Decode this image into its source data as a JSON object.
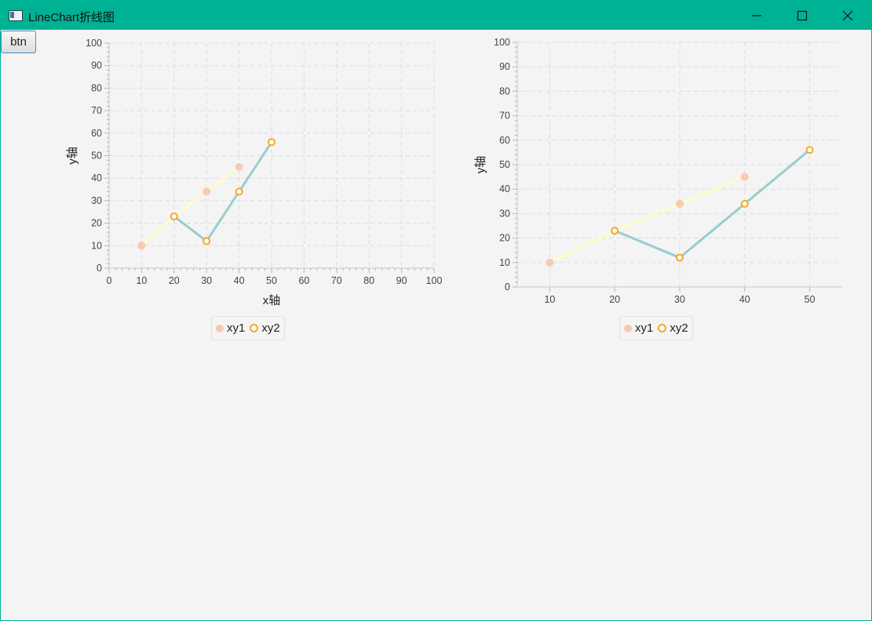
{
  "window": {
    "title": "LineChart折线图",
    "colors": {
      "titlebar": "#00b294",
      "background": "#f4f4f4"
    }
  },
  "toolbar": {
    "btn_label": "btn"
  },
  "icons": [
    "app-window-icon",
    "minimize-icon",
    "maximize-icon",
    "close-icon"
  ],
  "chart_data": [
    {
      "type": "line",
      "title": "",
      "xlabel": "x轴",
      "ylabel": "y轴",
      "xlim": [
        0,
        100
      ],
      "ylim": [
        0,
        100
      ],
      "xticks": [
        0,
        10,
        20,
        30,
        40,
        50,
        60,
        70,
        80,
        90,
        100
      ],
      "yticks": [
        0,
        10,
        20,
        30,
        40,
        50,
        60,
        70,
        80,
        90,
        100
      ],
      "grid": true,
      "legend": "bottom-center",
      "series": [
        {
          "name": "xy1",
          "color": "#fdfec4",
          "marker_color": "#f9c9b2",
          "marker": "filled-circle",
          "points": [
            [
              10,
              10
            ],
            [
              20,
              23
            ],
            [
              30,
              34
            ],
            [
              40,
              45
            ]
          ]
        },
        {
          "name": "xy2",
          "color": "#96ced0",
          "marker_color": "#f3a828",
          "marker": "ring",
          "points": [
            [
              20,
              23
            ],
            [
              30,
              12
            ],
            [
              40,
              34
            ],
            [
              50,
              56
            ]
          ]
        }
      ]
    },
    {
      "type": "line",
      "title": "",
      "xlabel": "",
      "ylabel": "y轴",
      "xlim": [
        5,
        55
      ],
      "ylim": [
        0,
        100
      ],
      "xticks": [
        10,
        20,
        30,
        40,
        50
      ],
      "yticks": [
        0,
        10,
        20,
        30,
        40,
        50,
        60,
        70,
        80,
        90,
        100
      ],
      "grid": true,
      "legend": "bottom-center",
      "series": [
        {
          "name": "xy1",
          "color": "#fdfec4",
          "marker_color": "#f9c9b2",
          "marker": "filled-circle",
          "points": [
            [
              10,
              10
            ],
            [
              20,
              23
            ],
            [
              30,
              34
            ],
            [
              40,
              45
            ]
          ]
        },
        {
          "name": "xy2",
          "color": "#96ced0",
          "marker_color": "#f3a828",
          "marker": "ring",
          "points": [
            [
              20,
              23
            ],
            [
              30,
              12
            ],
            [
              40,
              34
            ],
            [
              50,
              56
            ]
          ]
        }
      ]
    }
  ]
}
